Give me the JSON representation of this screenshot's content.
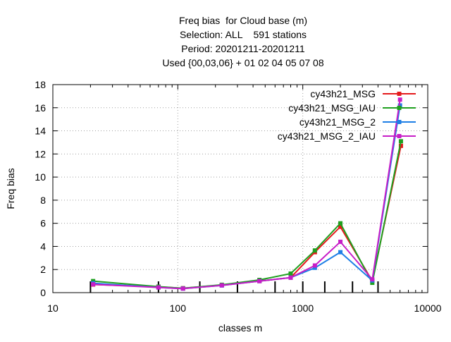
{
  "chart_data": {
    "type": "line",
    "title_lines": [
      "Freq bias  for Cloud base (m)",
      "Selection: ALL    591 stations",
      "Period: 20201211-20201211",
      "Used {00,03,06} + 01 02 04 05 07 08"
    ],
    "xlabel": "classes m",
    "ylabel": "Freq bias",
    "x_scale": "log",
    "xlim": [
      10,
      10000
    ],
    "ylim": [
      0,
      18
    ],
    "x_ticks": [
      10,
      100,
      1000,
      10000
    ],
    "x_tick_labels": [
      "10",
      "100",
      "1000",
      "10000"
    ],
    "y_ticks": [
      0,
      2,
      4,
      6,
      8,
      10,
      12,
      14,
      16,
      18
    ],
    "y_tick_labels": [
      "0",
      "2",
      "4",
      "6",
      "8",
      "10",
      "12",
      "14",
      "16",
      "18"
    ],
    "grid": true,
    "legend_position": "top-right",
    "class_marks": [
      20,
      70,
      150,
      300,
      600,
      1000,
      1500,
      2500,
      4000
    ],
    "series": [
      {
        "name": "cy43h21_MSG",
        "color": "#e41a1c",
        "x": [
          21,
          70,
          110,
          225,
          450,
          800,
          1250,
          2000,
          3600,
          6100
        ],
        "y": [
          0.7,
          0.5,
          0.38,
          0.65,
          1.0,
          1.3,
          3.5,
          5.7,
          1.0,
          12.7
        ]
      },
      {
        "name": "cy43h21_MSG_IAU",
        "color": "#1fa01f",
        "x": [
          21,
          70,
          110,
          225,
          450,
          800,
          1250,
          2000,
          3600,
          6100
        ],
        "y": [
          1.0,
          0.52,
          0.38,
          0.68,
          1.1,
          1.65,
          3.65,
          6.0,
          0.85,
          13.1
        ]
      },
      {
        "name": "cy43h21_MSG_2",
        "color": "#1e7fe6",
        "x": [
          21,
          70,
          110,
          225,
          450,
          800,
          1250,
          2000,
          3600,
          6000
        ],
        "y": [
          0.82,
          0.45,
          0.35,
          0.62,
          1.0,
          1.3,
          2.15,
          3.5,
          1.05,
          16.2
        ]
      },
      {
        "name": "cy43h21_MSG_2_IAU",
        "color": "#c71ec7",
        "x": [
          21,
          70,
          110,
          225,
          450,
          800,
          1250,
          2000,
          3600,
          6000
        ],
        "y": [
          0.72,
          0.45,
          0.35,
          0.63,
          1.0,
          1.3,
          2.35,
          4.4,
          1.15,
          16.7
        ]
      }
    ]
  }
}
